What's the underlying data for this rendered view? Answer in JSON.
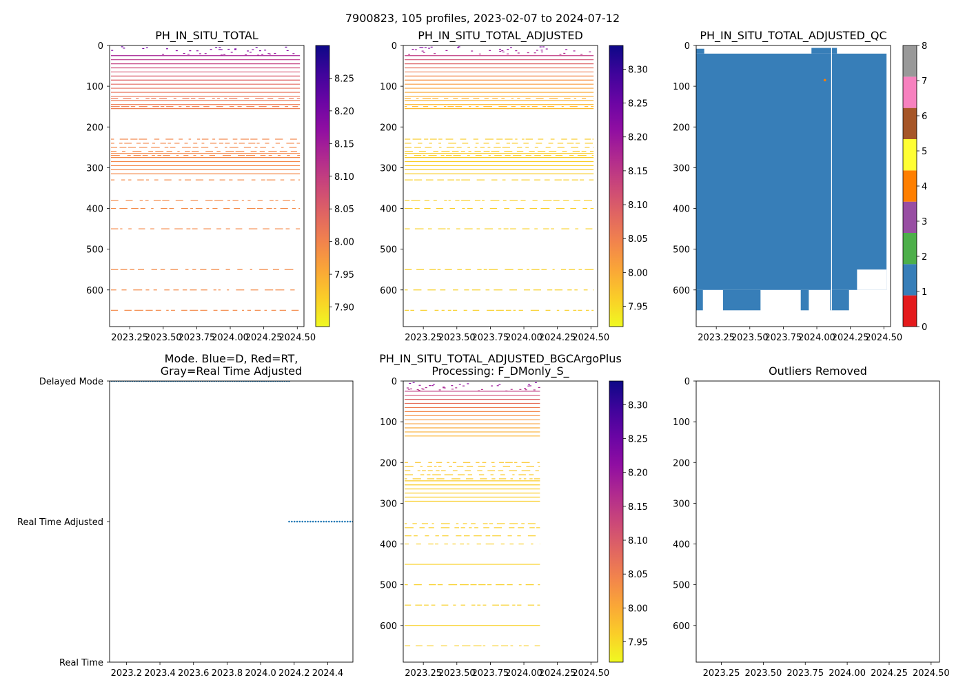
{
  "figure": {
    "suptitle": "7900823, 105 profiles, 2023-02-07 to 2024-07-12"
  },
  "colors": {
    "axis": "#000000",
    "qc_blue": "#377eb8",
    "mode_dot": "#1f77b4"
  },
  "chart_data": [
    {
      "id": "p1",
      "type": "heatmap",
      "title": "PH_IN_SITU_TOTAL",
      "xlim": [
        2023.1,
        2024.55
      ],
      "ylim": [
        690,
        0
      ],
      "xticks": [
        2023.25,
        2023.5,
        2023.75,
        2024.0,
        2024.25,
        2024.5
      ],
      "xtick_labels": [
        "2023.25",
        "2023.50",
        "2023.75",
        "2024.00",
        "2024.25",
        "2024.50"
      ],
      "yticks": [
        0,
        100,
        200,
        300,
        400,
        500,
        600
      ],
      "colorbar": {
        "cmap": "plasma_r",
        "vmin": 7.87,
        "vmax": 8.3,
        "ticks": [
          7.9,
          7.95,
          8.0,
          8.05,
          8.1,
          8.15,
          8.2,
          8.25
        ],
        "tick_labels": [
          "7.90",
          "7.95",
          "8.00",
          "8.05",
          "8.10",
          "8.15",
          "8.20",
          "8.25"
        ]
      },
      "x_range": [
        2023.11,
        2024.52
      ],
      "solid_depths": [
        25,
        35,
        45,
        55,
        65,
        75,
        85,
        95,
        105,
        115,
        125,
        135,
        145,
        155,
        265,
        275,
        285,
        295,
        305,
        315
      ],
      "dashed_depths": [
        130,
        150,
        230,
        240,
        250,
        260,
        270,
        330,
        380,
        400,
        450,
        550,
        600,
        650
      ],
      "surface_value": 8.22,
      "deep_value": 7.99
    },
    {
      "id": "p2",
      "type": "heatmap",
      "title": "PH_IN_SITU_TOTAL_ADJUSTED",
      "xlim": [
        2023.1,
        2024.55
      ],
      "ylim": [
        690,
        0
      ],
      "xticks": [
        2023.25,
        2023.5,
        2023.75,
        2024.0,
        2024.25,
        2024.5
      ],
      "xtick_labels": [
        "2023.25",
        "2023.50",
        "2023.75",
        "2024.00",
        "2024.25",
        "2024.50"
      ],
      "yticks": [
        0,
        100,
        200,
        300,
        400,
        500,
        600
      ],
      "colorbar": {
        "cmap": "plasma_r",
        "vmin": 7.92,
        "vmax": 8.335,
        "ticks": [
          7.95,
          8.0,
          8.05,
          8.1,
          8.15,
          8.2,
          8.25,
          8.3
        ],
        "tick_labels": [
          "7.95",
          "8.00",
          "8.05",
          "8.10",
          "8.15",
          "8.20",
          "8.25",
          "8.30"
        ]
      },
      "x_range": [
        2023.11,
        2024.52
      ],
      "solid_depths": [
        25,
        35,
        45,
        55,
        65,
        75,
        85,
        95,
        105,
        115,
        125,
        135,
        145,
        155,
        265,
        275,
        285,
        295,
        305,
        315
      ],
      "dashed_depths": [
        130,
        150,
        230,
        240,
        250,
        260,
        270,
        330,
        380,
        400,
        450,
        550,
        600,
        650
      ],
      "surface_value": 8.24,
      "deep_value": 7.96
    },
    {
      "id": "p3",
      "type": "heatmap",
      "title": "PH_IN_SITU_TOTAL_ADJUSTED_QC",
      "xlim": [
        2023.1,
        2024.55
      ],
      "ylim": [
        690,
        0
      ],
      "xticks": [
        2023.25,
        2023.5,
        2023.75,
        2024.0,
        2024.25,
        2024.5
      ],
      "xtick_labels": [
        "2023.25",
        "2023.50",
        "2023.75",
        "2024.00",
        "2024.25",
        "2024.50"
      ],
      "yticks": [
        0,
        100,
        200,
        300,
        400,
        500,
        600
      ],
      "qc_fill": {
        "flag": 1,
        "x_range": [
          2023.1,
          2024.52
        ],
        "top_depth": 20,
        "typical_bottom": 600,
        "late_bottom": 550
      },
      "qc_gaps": [
        {
          "x0": 2023.3,
          "x1": 2023.58,
          "bottom": 650
        },
        {
          "x0": 2023.88,
          "x1": 2023.94,
          "bottom": 650
        },
        {
          "x0": 2024.1,
          "x1": 2024.24,
          "bottom": 650
        }
      ],
      "qc_white_line_x": 2024.11,
      "qc_outlier": {
        "x": 2024.06,
        "depth": 85,
        "flag": 4
      },
      "colorbar": {
        "type": "categorical",
        "vmin": 0,
        "vmax": 8,
        "colors": [
          "#e41a1c",
          "#377eb8",
          "#4daf4a",
          "#984ea3",
          "#ff7f00",
          "#ffff33",
          "#a65628",
          "#f781bf",
          "#999999"
        ],
        "ticks": [
          0,
          1,
          2,
          3,
          4,
          5,
          6,
          7,
          8
        ],
        "tick_labels": [
          "0",
          "1",
          "2",
          "3",
          "4",
          "5",
          "6",
          "7",
          "8"
        ]
      }
    },
    {
      "id": "p4",
      "type": "scatter",
      "title": "Mode. Blue=D, Red=RT,",
      "title_line2": "Gray=Real Time Adjusted",
      "xlim": [
        2023.1,
        2024.55
      ],
      "xticks": [
        2023.2,
        2023.4,
        2023.6,
        2023.8,
        2024.0,
        2024.2,
        2024.4
      ],
      "xtick_labels": [
        "2023.2",
        "2023.4",
        "2023.6",
        "2023.8",
        "2024.0",
        "2024.2",
        "2024.4"
      ],
      "ylim": [
        0,
        2
      ],
      "yticks": [
        0,
        1,
        2
      ],
      "ytick_labels": [
        "Real Time",
        "Real Time Adjusted",
        "Delayed Mode"
      ],
      "series": [
        {
          "name": "Delayed Mode",
          "y": 2,
          "x_start": 2023.1,
          "x_end": 2024.17,
          "count": 80
        },
        {
          "name": "Real Time Adjusted",
          "y": 1,
          "x_start": 2024.17,
          "x_end": 2024.55,
          "count": 25
        }
      ]
    },
    {
      "id": "p5",
      "type": "heatmap",
      "title": "PH_IN_SITU_TOTAL_ADJUSTED_BGCArgoPlus",
      "title_line2": "Processing: F_DMonly_S_",
      "xlim": [
        2023.1,
        2024.55
      ],
      "ylim": [
        690,
        0
      ],
      "xticks": [
        2023.25,
        2023.5,
        2023.75,
        2024.0,
        2024.25,
        2024.5
      ],
      "xtick_labels": [
        "2023.25",
        "2023.50",
        "2023.75",
        "2024.00",
        "2024.25",
        "2024.50"
      ],
      "yticks": [
        0,
        100,
        200,
        300,
        400,
        500,
        600
      ],
      "colorbar": {
        "cmap": "plasma_r",
        "vmin": 7.92,
        "vmax": 8.335,
        "ticks": [
          7.95,
          8.0,
          8.05,
          8.1,
          8.15,
          8.2,
          8.25,
          8.3
        ],
        "tick_labels": [
          "7.95",
          "8.00",
          "8.05",
          "8.10",
          "8.15",
          "8.20",
          "8.25",
          "8.30"
        ]
      },
      "x_range": [
        2023.11,
        2024.12
      ],
      "solid_depths": [
        25,
        35,
        45,
        55,
        65,
        75,
        85,
        95,
        105,
        115,
        125,
        135,
        245,
        255,
        265,
        275,
        285,
        295,
        450,
        600
      ],
      "dashed_depths": [
        200,
        210,
        220,
        230,
        240,
        350,
        360,
        380,
        400,
        500,
        550,
        650
      ],
      "surface_value": 8.24,
      "deep_value": 7.96
    },
    {
      "id": "p6",
      "type": "scatter",
      "title": "Outliers Removed",
      "xlim": [
        2023.1,
        2024.55
      ],
      "ylim": [
        690,
        0
      ],
      "xticks": [
        2023.25,
        2023.5,
        2023.75,
        2024.0,
        2024.25,
        2024.5
      ],
      "xtick_labels": [
        "2023.25",
        "2023.50",
        "2023.75",
        "2024.00",
        "2024.25",
        "2024.50"
      ],
      "yticks": [
        0,
        100,
        200,
        300,
        400,
        500,
        600
      ],
      "points": []
    }
  ]
}
